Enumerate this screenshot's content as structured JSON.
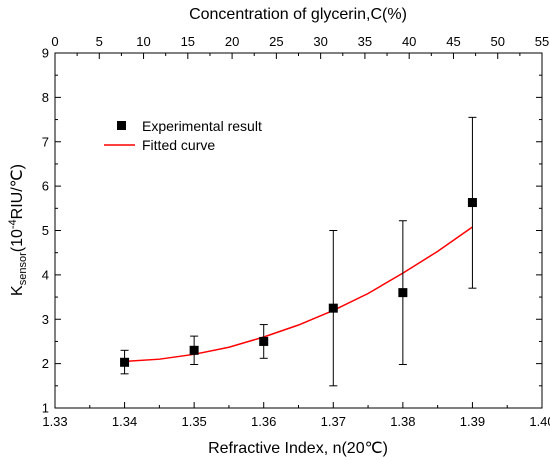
{
  "chart_data": {
    "type": "scatter",
    "xlabel": "Refractive Index, n(20℃)",
    "ylabel_main": "K",
    "ylabel_sub": "sensor",
    "ylabel_unit_pre": "(10",
    "ylabel_unit_exp": "-4",
    "ylabel_unit_post": "RIU/℃)",
    "top_xlabel": "Concentration of glycerin,C(%)",
    "xlim": [
      1.33,
      1.4
    ],
    "ylim": [
      1,
      9
    ],
    "top_xlim": [
      0,
      55
    ],
    "x_ticks": [
      "1.33",
      "1.34",
      "1.35",
      "1.36",
      "1.37",
      "1.38",
      "1.39",
      "1.40"
    ],
    "y_ticks": [
      "1",
      "2",
      "3",
      "4",
      "5",
      "6",
      "7",
      "8",
      "9"
    ],
    "top_ticks": [
      "0",
      "5",
      "10",
      "15",
      "20",
      "25",
      "30",
      "35",
      "40",
      "45",
      "50",
      "55"
    ],
    "legend_position": "upper-left",
    "series": [
      {
        "name": "Experimental result",
        "marker": "square",
        "color": "#000000",
        "points": [
          {
            "x": 1.34,
            "y": 2.03,
            "err_low": 1.77,
            "err_high": 2.3
          },
          {
            "x": 1.35,
            "y": 2.3,
            "err_low": 1.98,
            "err_high": 2.62
          },
          {
            "x": 1.36,
            "y": 2.5,
            "err_low": 2.12,
            "err_high": 2.88
          },
          {
            "x": 1.37,
            "y": 3.25,
            "err_low": 1.5,
            "err_high": 5.0
          },
          {
            "x": 1.38,
            "y": 3.6,
            "err_low": 1.98,
            "err_high": 5.22
          },
          {
            "x": 1.39,
            "y": 5.63,
            "err_low": 3.7,
            "err_high": 7.55
          }
        ]
      },
      {
        "name": "Fitted curve",
        "type": "line",
        "color": "#ff0000",
        "x": [
          1.34,
          1.345,
          1.35,
          1.355,
          1.36,
          1.365,
          1.37,
          1.375,
          1.38,
          1.385,
          1.39
        ],
        "y": [
          2.05,
          2.1,
          2.21,
          2.37,
          2.6,
          2.87,
          3.2,
          3.58,
          4.04,
          4.53,
          5.08
        ]
      }
    ]
  }
}
